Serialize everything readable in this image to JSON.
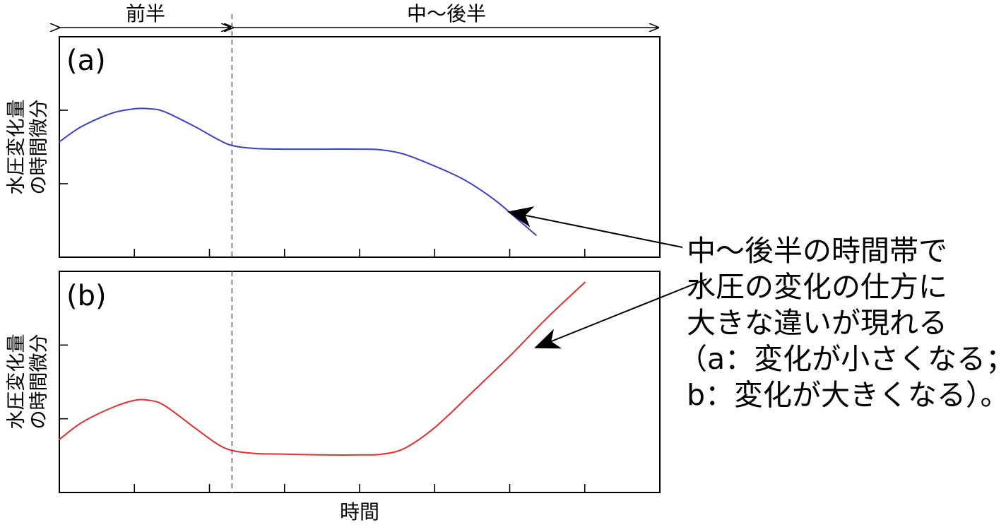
{
  "phases": {
    "early": "前半",
    "late": "中〜後半"
  },
  "x_axis_label": "時間",
  "annotation": {
    "lines": [
      "中〜後半の時間帯で",
      "水圧の変化の仕方に",
      "大きな違いが現れる",
      "（a：変化が小さくなる；",
      "b：変化が大きくなる）。"
    ]
  },
  "chart_data": [
    {
      "type": "line",
      "panel_label": "(a)",
      "ylabel": [
        "水圧変化量",
        "の時間微分"
      ],
      "xlim": [
        0,
        8
      ],
      "ylim": [
        0,
        3
      ],
      "x_ticks": [
        1,
        2,
        3,
        4,
        5,
        6,
        7
      ],
      "y_ticks": [
        1,
        2
      ],
      "phase_boundary_x": 2.3,
      "grid": false,
      "series": [
        {
          "color": "#3b3fc8",
          "x": [
            0,
            0.3,
            0.7,
            1.0,
            1.2,
            1.4,
            1.8,
            2.1,
            2.3,
            2.6,
            3.0,
            3.5,
            4.0,
            4.3,
            4.6,
            5.0,
            5.4,
            5.8,
            6.1,
            6.35
          ],
          "y": [
            1.57,
            1.78,
            1.96,
            2.02,
            2.02,
            1.98,
            1.78,
            1.61,
            1.52,
            1.48,
            1.47,
            1.47,
            1.47,
            1.46,
            1.4,
            1.24,
            1.05,
            0.78,
            0.52,
            0.3
          ]
        }
      ]
    },
    {
      "type": "line",
      "panel_label": "(b)",
      "ylabel": [
        "水圧変化量",
        "の時間微分"
      ],
      "xlim": [
        0,
        8
      ],
      "ylim": [
        0,
        3
      ],
      "x_ticks": [
        1,
        2,
        3,
        4,
        5,
        6,
        7
      ],
      "y_ticks": [
        1,
        2
      ],
      "phase_boundary_x": 2.3,
      "grid": false,
      "series": [
        {
          "color": "#e03131",
          "x": [
            0,
            0.3,
            0.7,
            1.0,
            1.2,
            1.4,
            1.8,
            2.1,
            2.3,
            2.6,
            3.0,
            3.5,
            4.0,
            4.3,
            4.6,
            5.0,
            5.5,
            6.0,
            6.5,
            7.0
          ],
          "y": [
            0.72,
            0.95,
            1.15,
            1.25,
            1.25,
            1.18,
            0.88,
            0.66,
            0.57,
            0.53,
            0.52,
            0.51,
            0.51,
            0.52,
            0.6,
            0.88,
            1.36,
            1.85,
            2.37,
            2.85
          ]
        }
      ]
    }
  ]
}
